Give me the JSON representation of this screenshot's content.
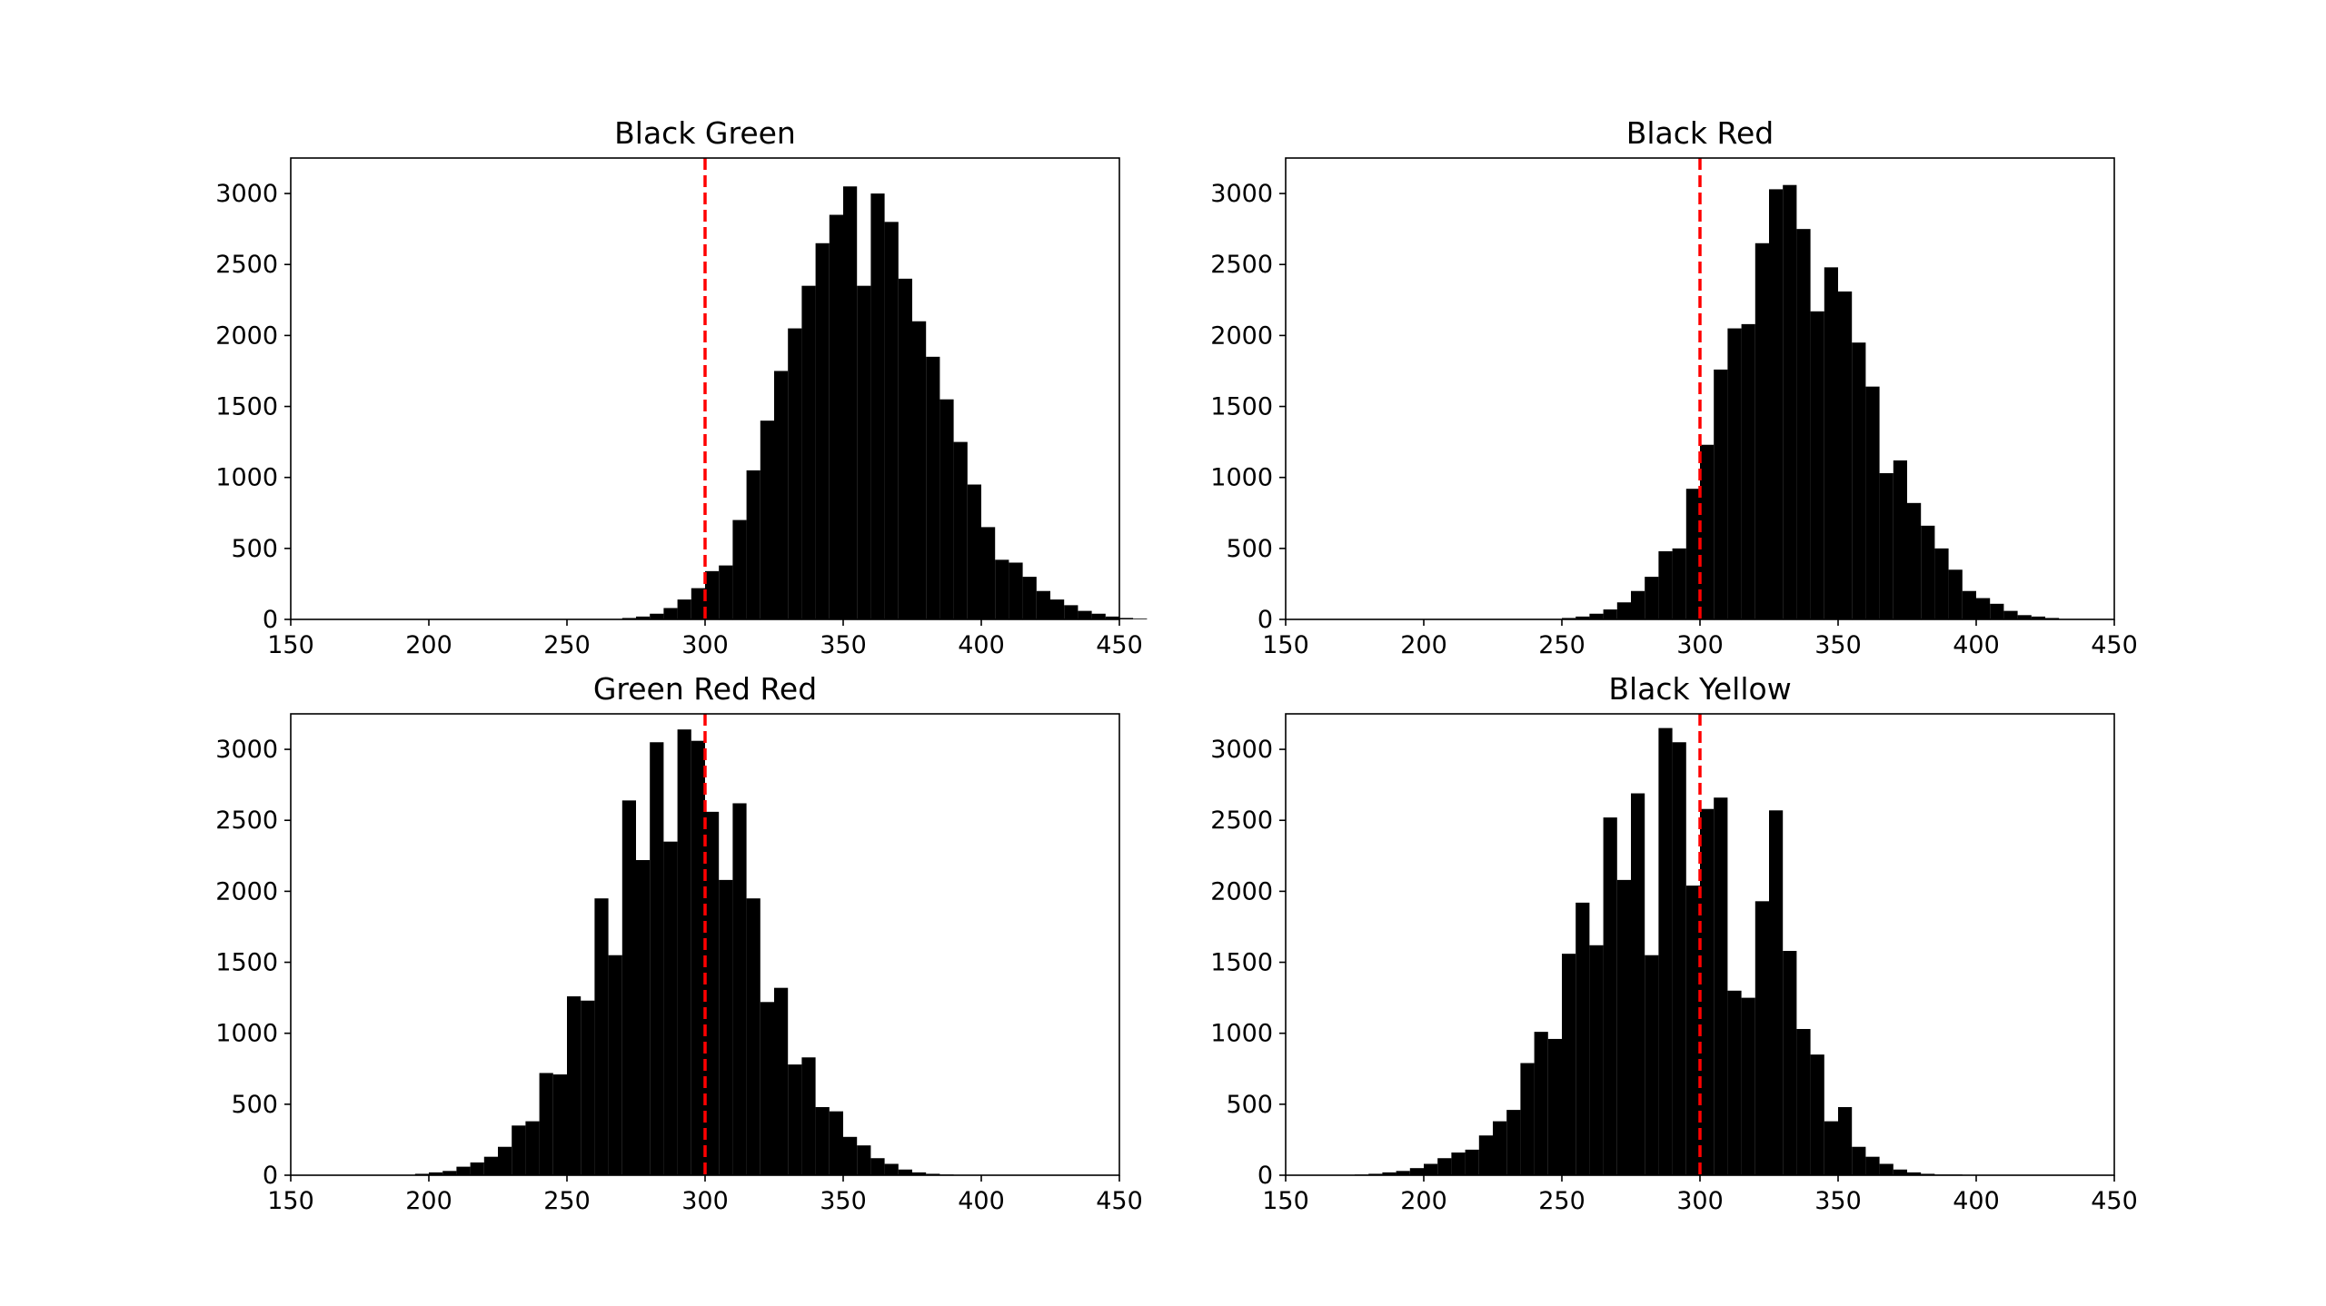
{
  "chart_data": [
    {
      "type": "bar",
      "title": "Black Green",
      "xlabel": "",
      "ylabel": "",
      "xlim": [
        150,
        450
      ],
      "ylim": [
        0,
        3250
      ],
      "xticks": [
        150,
        200,
        250,
        300,
        350,
        400,
        450
      ],
      "yticks": [
        0,
        500,
        1000,
        1500,
        2000,
        2500,
        3000
      ],
      "reference_line": {
        "x": 300,
        "color": "#ff0000",
        "style": "dashed"
      },
      "bar_color": "#000000",
      "bin_start": 270,
      "bin_width": 5,
      "values": [
        10,
        20,
        40,
        80,
        140,
        220,
        340,
        380,
        700,
        1050,
        1400,
        1750,
        2050,
        2350,
        2650,
        2850,
        3050,
        2350,
        3000,
        2800,
        2400,
        2100,
        1850,
        1550,
        1250,
        950,
        650,
        420,
        400,
        300,
        200,
        140,
        100,
        60,
        40,
        20,
        10,
        5
      ]
    },
    {
      "type": "bar",
      "title": "Black Red",
      "xlabel": "",
      "ylabel": "",
      "xlim": [
        150,
        450
      ],
      "ylim": [
        0,
        3250
      ],
      "xticks": [
        150,
        200,
        250,
        300,
        350,
        400,
        450
      ],
      "yticks": [
        0,
        500,
        1000,
        1500,
        2000,
        2500,
        3000
      ],
      "reference_line": {
        "x": 300,
        "color": "#ff0000",
        "style": "dashed"
      },
      "bar_color": "#000000",
      "bin_start": 250,
      "bin_width": 5,
      "values": [
        10,
        20,
        40,
        70,
        120,
        200,
        300,
        480,
        500,
        920,
        1230,
        1760,
        2050,
        2080,
        2650,
        3030,
        3060,
        2750,
        2170,
        2480,
        2310,
        1950,
        1640,
        1030,
        1120,
        820,
        660,
        500,
        350,
        200,
        150,
        110,
        60,
        30,
        20,
        10
      ]
    },
    {
      "type": "bar",
      "title": "Green Red Red",
      "xlabel": "",
      "ylabel": "",
      "xlim": [
        150,
        450
      ],
      "ylim": [
        0,
        3250
      ],
      "xticks": [
        150,
        200,
        250,
        300,
        350,
        400,
        450
      ],
      "yticks": [
        0,
        500,
        1000,
        1500,
        2000,
        2500,
        3000
      ],
      "reference_line": {
        "x": 300,
        "color": "#ff0000",
        "style": "dashed"
      },
      "bar_color": "#000000",
      "bin_start": 195,
      "bin_width": 5,
      "values": [
        10,
        20,
        30,
        60,
        90,
        130,
        200,
        350,
        380,
        720,
        710,
        1260,
        1230,
        1950,
        1550,
        2640,
        2220,
        3050,
        2350,
        3140,
        3060,
        2560,
        2080,
        2620,
        1950,
        1220,
        1320,
        780,
        830,
        480,
        450,
        270,
        210,
        120,
        80,
        40,
        20,
        10,
        5
      ]
    },
    {
      "type": "bar",
      "title": "Black Yellow",
      "xlabel": "",
      "ylabel": "",
      "xlim": [
        150,
        450
      ],
      "ylim": [
        0,
        3250
      ],
      "xticks": [
        150,
        200,
        250,
        300,
        350,
        400,
        450
      ],
      "yticks": [
        0,
        500,
        1000,
        1500,
        2000,
        2500,
        3000
      ],
      "reference_line": {
        "x": 300,
        "color": "#ff0000",
        "style": "dashed"
      },
      "bar_color": "#000000",
      "bin_start": 175,
      "bin_width": 5,
      "values": [
        5,
        10,
        20,
        30,
        50,
        80,
        120,
        160,
        180,
        280,
        380,
        460,
        790,
        1010,
        960,
        1560,
        1920,
        1620,
        2520,
        2080,
        2690,
        1550,
        3150,
        3050,
        2040,
        2580,
        2660,
        1300,
        1250,
        1930,
        2570,
        1580,
        1030,
        850,
        380,
        480,
        200,
        130,
        80,
        40,
        20,
        10,
        5,
        5
      ]
    }
  ]
}
